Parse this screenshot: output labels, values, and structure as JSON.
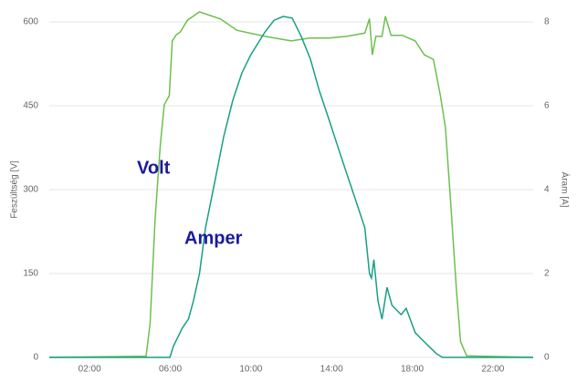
{
  "chart_data": {
    "type": "line",
    "ylabel": "Feszültség [V]",
    "y2label": "Áram [A]",
    "annotations": [
      "Volt",
      "Amper"
    ],
    "xlim": [
      0,
      24
    ],
    "xticks": [
      {
        "value": 2,
        "label": "02:00"
      },
      {
        "value": 6,
        "label": "06:00"
      },
      {
        "value": 10,
        "label": "10:00"
      },
      {
        "value": 14,
        "label": "14:00"
      },
      {
        "value": 18,
        "label": "18:00"
      },
      {
        "value": 22,
        "label": "22:00"
      }
    ],
    "ylim": [
      0,
      600
    ],
    "yticks": [
      0,
      150,
      300,
      450,
      600
    ],
    "y2lim": [
      0,
      8
    ],
    "y2ticks": [
      0,
      2,
      4,
      6,
      8
    ],
    "grid": true,
    "series": [
      {
        "name": "Volt",
        "color": "#6cc04f",
        "x": [
          0,
          4.8,
          5.0,
          5.25,
          5.5,
          5.7,
          5.95,
          6.1,
          6.3,
          6.5,
          6.85,
          7.45,
          8.5,
          9.3,
          10.7,
          12.0,
          12.9,
          13.85,
          14.75,
          15.65,
          15.88,
          16.02,
          16.2,
          16.5,
          16.67,
          16.95,
          17.5,
          18.15,
          18.6,
          19.05,
          19.4,
          19.65,
          19.9,
          20.2,
          20.4,
          20.7,
          24
        ],
        "values": [
          0,
          2,
          60,
          248,
          378,
          452,
          468,
          566,
          577,
          582,
          603,
          618,
          605,
          585,
          574,
          566,
          571,
          571,
          574,
          580,
          606,
          541,
          574,
          574,
          610,
          576,
          576,
          566,
          541,
          533,
          468,
          411,
          280,
          117,
          28,
          3,
          0
        ]
      },
      {
        "name": "Amper",
        "color": "#17a085",
        "axis": "y2",
        "x": [
          0,
          5.98,
          6.15,
          6.6,
          6.9,
          7.15,
          7.45,
          7.75,
          8.2,
          8.65,
          9.1,
          9.55,
          10.0,
          10.7,
          11.15,
          11.6,
          12.05,
          12.5,
          12.95,
          13.4,
          13.85,
          14.3,
          14.75,
          15.2,
          15.65,
          15.88,
          15.98,
          16.1,
          16.3,
          16.5,
          16.75,
          17.0,
          17.45,
          17.7,
          18.15,
          18.6,
          19.2,
          19.5,
          24
        ],
        "values": [
          0,
          0,
          0.26,
          0.7,
          0.91,
          1.35,
          2.0,
          3.09,
          4.17,
          5.26,
          6.13,
          6.78,
          7.22,
          7.76,
          8.04,
          8.13,
          8.09,
          7.65,
          7.11,
          6.35,
          5.7,
          5.04,
          4.39,
          3.74,
          3.09,
          2.0,
          1.89,
          2.33,
          1.35,
          0.91,
          1.67,
          1.24,
          1.02,
          1.17,
          0.59,
          0.37,
          0.09,
          0,
          0
        ]
      }
    ]
  }
}
